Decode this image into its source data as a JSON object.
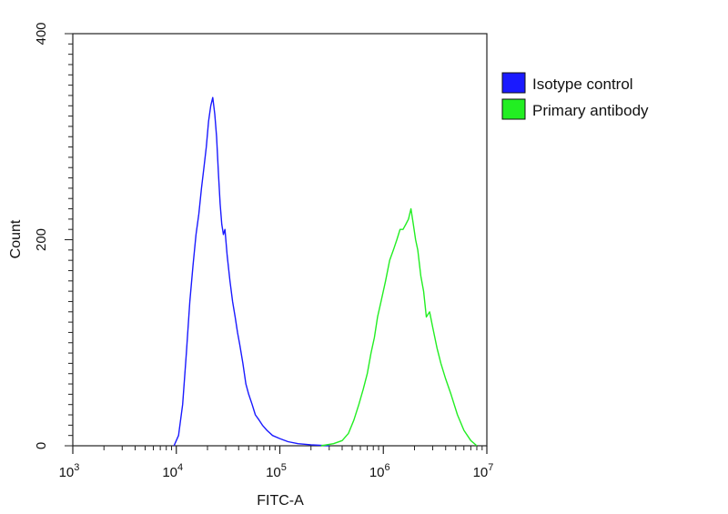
{
  "chart_data": {
    "type": "line",
    "xlabel": "FITC-A",
    "ylabel": "Count",
    "x_scale": "log",
    "xlim": [
      1000,
      10000000
    ],
    "ylim": [
      0,
      400
    ],
    "x_ticks": [
      {
        "value": 1000,
        "base": "10",
        "exp": "3"
      },
      {
        "value": 10000,
        "base": "10",
        "exp": "4"
      },
      {
        "value": 100000,
        "base": "10",
        "exp": "5"
      },
      {
        "value": 1000000,
        "base": "10",
        "exp": "6"
      },
      {
        "value": 10000000,
        "base": "10",
        "exp": "7"
      }
    ],
    "y_ticks": [
      0,
      200,
      400
    ],
    "legend_position": "right, outside plot",
    "series": [
      {
        "name": "Isotype control",
        "color": "#1a1aff",
        "x": [
          9500,
          10500,
          11500,
          12500,
          13500,
          14500,
          15500,
          16500,
          17500,
          18500,
          19500,
          20500,
          21500,
          22500,
          23500,
          24500,
          25500,
          26500,
          27500,
          28500,
          29500,
          31000,
          33000,
          35000,
          37000,
          39000,
          41000,
          44000,
          47000,
          50000,
          54000,
          58000,
          63000,
          68000,
          75000,
          85000,
          100000,
          120000,
          150000,
          200000,
          300000
        ],
        "y": [
          0,
          10,
          40,
          90,
          140,
          175,
          205,
          225,
          250,
          270,
          290,
          315,
          330,
          338,
          322,
          300,
          265,
          235,
          215,
          205,
          210,
          185,
          160,
          140,
          125,
          110,
          98,
          80,
          60,
          50,
          40,
          30,
          25,
          20,
          15,
          10,
          7,
          4,
          2,
          1,
          0
        ]
      },
      {
        "name": "Primary antibody",
        "color": "#22ee22",
        "x": [
          250000,
          330000,
          400000,
          460000,
          520000,
          580000,
          640000,
          700000,
          760000,
          820000,
          880000,
          950000,
          1050000,
          1150000,
          1250000,
          1350000,
          1450000,
          1550000,
          1650000,
          1750000,
          1850000,
          1950000,
          2050000,
          2150000,
          2300000,
          2450000,
          2600000,
          2800000,
          3000000,
          3300000,
          3600000,
          4000000,
          4500000,
          5200000,
          6000000,
          7000000,
          8000000
        ],
        "y": [
          0,
          2,
          5,
          12,
          25,
          40,
          55,
          70,
          90,
          105,
          125,
          140,
          160,
          180,
          190,
          200,
          210,
          210,
          215,
          220,
          230,
          215,
          200,
          190,
          165,
          150,
          125,
          130,
          115,
          95,
          80,
          65,
          50,
          30,
          15,
          5,
          0
        ]
      }
    ]
  }
}
